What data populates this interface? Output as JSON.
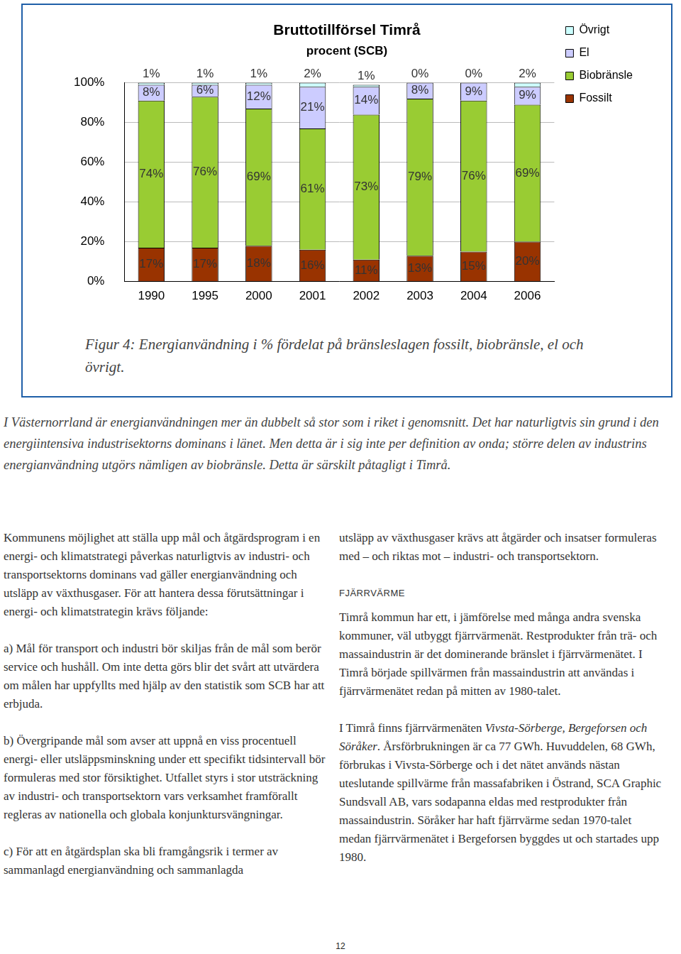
{
  "chart_data": {
    "type": "bar",
    "title": "Bruttotillförsel Timrå",
    "subtitle": "procent (SCB)",
    "categories": [
      "1990",
      "1995",
      "2000",
      "2001",
      "2002",
      "2003",
      "2004",
      "2006"
    ],
    "stacked": true,
    "data_labels": true,
    "legend": "right",
    "grid": true,
    "ylim": [
      0,
      100
    ],
    "yticks": [
      {
        "value": 0,
        "label": "0%"
      },
      {
        "value": 20,
        "label": "20%"
      },
      {
        "value": 40,
        "label": "40%"
      },
      {
        "value": 60,
        "label": "60%"
      },
      {
        "value": 80,
        "label": "80%"
      },
      {
        "value": 100,
        "label": "100%"
      }
    ],
    "series": [
      {
        "name": "Fossilt",
        "color": "#993300",
        "values": [
          17,
          17,
          18,
          16,
          11,
          13,
          15,
          20
        ],
        "value_labels": [
          "17%",
          "17%",
          "18%",
          "16%",
          "11%",
          "13%",
          "15%",
          "20%"
        ]
      },
      {
        "name": "Biobränsle",
        "color": "#99cc33",
        "values": [
          74,
          76,
          69,
          61,
          73,
          79,
          76,
          69
        ],
        "value_labels": [
          "74%",
          "76%",
          "69%",
          "61%",
          "73%",
          "79%",
          "76%",
          "69%"
        ]
      },
      {
        "name": "El",
        "color": "#ccccff",
        "values": [
          8,
          6,
          12,
          21,
          14,
          8,
          9,
          9
        ],
        "value_labels": [
          "8%",
          "6%",
          "12%",
          "21%",
          "14%",
          "8%",
          "9%",
          "9%"
        ]
      },
      {
        "name": "Övrigt",
        "color": "#ccffff",
        "values": [
          1,
          1,
          1,
          2,
          1,
          0,
          0,
          2
        ],
        "value_labels": [
          "1%",
          "1%",
          "1%",
          "2%",
          "1%",
          "0%",
          "0%",
          "2%"
        ]
      }
    ]
  },
  "caption": "Figur 4: Energianvändning i % fördelat på bränsleslagen fossilt, biobränsle, el och övrigt.",
  "intro": "I Västernorrland är energianvändningen mer än dubbelt så stor som i riket i genomsnitt. Det har naturligtvis sin grund i den energiintensiva industrisektorns dominans i länet. Men detta är i sig inte per definition av onda; större delen av industrins energianvändning utgörs nämligen av biobränsle. Detta är särskilt påtagligt i Timrå.",
  "left_column": [
    "Kommunens möjlighet att ställa upp mål och åtgärdsprogram i en energi- och klimatstrategi påverkas naturligtvis av industri- och transportsektorns dominans vad gäller energianvändning och utsläpp av växthusgaser. För att hantera dessa förutsättningar i energi- och klimatstrategin krävs följande:",
    "a) Mål för transport och industri bör skiljas från de mål som berör service och hushåll. Om inte detta görs blir det svårt att utvärdera om målen har uppfyllts med hjälp av den statistik som SCB har att erbjuda.",
    "b) Övergripande mål som avser att uppnå en viss procentuell energi- eller utsläppsminskning under ett specifikt tidsintervall bör formuleras med stor försiktighet. Utfallet styrs i stor utsträckning av industri- och transportsektorn vars verksamhet framförallt regleras av nationella och globala konjunktursvängningar.",
    "c) För att en åtgärdsplan ska bli framgångsrik i termer av sammanlagd energianvändning och sammanlagda"
  ],
  "right_column": {
    "continuation": "utsläpp av växthusgaser krävs att åtgärder och insatser formuleras med – och riktas mot – industri- och transportsektorn.",
    "heading": "FJÄRRVÄRME",
    "paragraphs": [
      [
        {
          "text": "Timrå kommun har ett, i jämförelse med många andra svenska kommuner, väl utbyggt fjärrvärmenät. Restprodukter från trä- och massaindustrin är det dominerande bränslet i fjärrvärmenätet. I Timrå började spillvärmen från massaindustrin att användas i fjärrvärmenätet redan på mitten av 1980-talet."
        }
      ],
      [
        {
          "text": "I Timrå finns fjärrvärmenäten "
        },
        {
          "text": "Vivsta-Sörberge, Bergeforsen och Söråker",
          "italic": true
        },
        {
          "text": ". Årsförbrukningen är ca 77 GWh. Huvuddelen, 68 GWh, förbrukas i Vivsta-Sörberge och i det nätet används nästan uteslutande spillvärme från massafabriken i Östrand, SCA Graphic Sundsvall AB, vars sodapanna eldas med restprodukter från massaindustrin. Söråker har haft fjärrvärme sedan 1970-talet medan fjärrvärmenätet i Bergeforsen byggdes ut och startades upp 1980."
        }
      ]
    ]
  },
  "page_number": "12"
}
